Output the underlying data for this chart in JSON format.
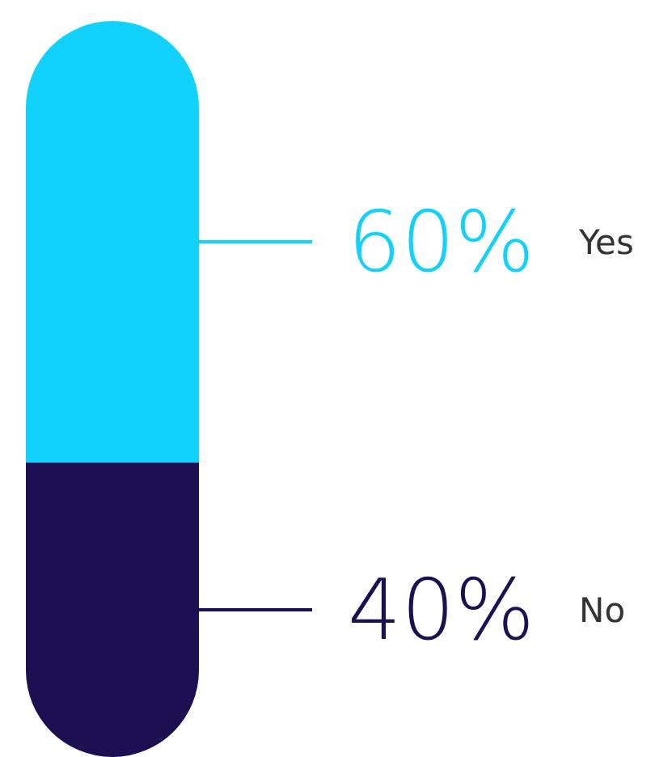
{
  "chart_data": {
    "type": "bar",
    "stacked": true,
    "categories": [
      null
    ],
    "series": [
      {
        "name": "No",
        "color": "#1c1052",
        "values": [
          40
        ],
        "value_labels": [
          "40%"
        ]
      },
      {
        "name": "Yes",
        "color": "#12d2fc",
        "values": [
          60
        ],
        "value_labels": [
          "60%"
        ]
      }
    ]
  }
}
